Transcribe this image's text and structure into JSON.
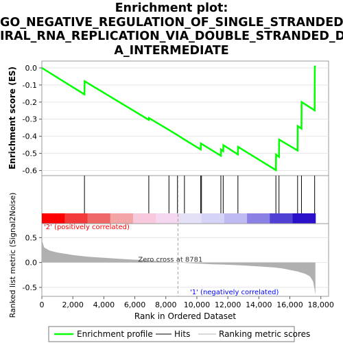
{
  "chart_data": {
    "type": "line",
    "title_lines": [
      "Enrichment plot:",
      "GO_NEGATIVE_REGULATION_OF_SINGLE_STRANDED_V",
      "IRAL_RNA_REPLICATION_VIA_DOUBLE_STRANDED_DN",
      "A_INTERMEDIATE"
    ],
    "xlabel": "Rank in Ordered Dataset",
    "ylabel_top": "Enrichment score (ES)",
    "ylabel_bottom": "Ranked list metric (Signal2Noise)",
    "xlim": [
      0,
      18500
    ],
    "x_ticks": [
      0,
      2000,
      4000,
      6000,
      8000,
      10000,
      12000,
      14000,
      16000,
      18000
    ],
    "x_tick_labels": [
      "0",
      "2,000",
      "4,000",
      "6,000",
      "8,000",
      "10,000",
      "12,000",
      "14,000",
      "16,000",
      "18,000"
    ],
    "es_ylim": [
      -0.63,
      0.04
    ],
    "es_ticks": [
      0.0,
      -0.1,
      -0.2,
      -0.3,
      -0.4,
      -0.5,
      -0.6
    ],
    "es_tick_labels": [
      "0.0",
      "-0.1",
      "-0.2",
      "-0.3",
      "-0.4",
      "-0.5",
      "-0.6"
    ],
    "metric_ylim": [
      -0.68,
      0.78
    ],
    "metric_ticks": [
      0.5,
      0.0,
      -0.5
    ],
    "metric_tick_labels": [
      "0.5",
      "0.0",
      "-0.5"
    ],
    "n_genes": 17650,
    "hits": [
      2750,
      6900,
      8200,
      8750,
      9200,
      10250,
      10300,
      11550,
      11700,
      12650,
      15100,
      15300,
      16500,
      16750,
      17600
    ],
    "es_profile": [
      [
        0,
        0.0
      ],
      [
        2750,
        -0.155
      ],
      [
        2760,
        -0.078
      ],
      [
        6900,
        -0.304
      ],
      [
        6910,
        -0.293
      ],
      [
        8200,
        -0.363
      ],
      [
        8750,
        -0.393
      ],
      [
        9200,
        -0.419
      ],
      [
        10250,
        -0.477
      ],
      [
        10260,
        -0.442
      ],
      [
        11550,
        -0.514
      ],
      [
        11560,
        -0.477
      ],
      [
        11700,
        -0.487
      ],
      [
        11710,
        -0.452
      ],
      [
        12650,
        -0.506
      ],
      [
        12660,
        -0.462
      ],
      [
        15100,
        -0.598
      ],
      [
        15110,
        -0.507
      ],
      [
        15300,
        -0.52
      ],
      [
        15310,
        -0.419
      ],
      [
        16500,
        -0.483
      ],
      [
        16510,
        -0.34
      ],
      [
        16750,
        -0.355
      ],
      [
        16760,
        -0.2
      ],
      [
        17600,
        -0.248
      ],
      [
        17610,
        0.012
      ],
      [
        17650,
        0.005
      ]
    ],
    "metric_curve": [
      [
        0,
        0.45
      ],
      [
        150,
        0.3
      ],
      [
        500,
        0.24
      ],
      [
        1000,
        0.2
      ],
      [
        2000,
        0.15
      ],
      [
        3000,
        0.115
      ],
      [
        4000,
        0.095
      ],
      [
        5000,
        0.075
      ],
      [
        6000,
        0.055
      ],
      [
        7000,
        0.04
      ],
      [
        8000,
        0.015
      ],
      [
        8781,
        0.0
      ],
      [
        10000,
        -0.02
      ],
      [
        11000,
        -0.035
      ],
      [
        12000,
        -0.045
      ],
      [
        13000,
        -0.06
      ],
      [
        14000,
        -0.08
      ],
      [
        15000,
        -0.1
      ],
      [
        15500,
        -0.12
      ],
      [
        16000,
        -0.15
      ],
      [
        16500,
        -0.18
      ],
      [
        17000,
        -0.23
      ],
      [
        17300,
        -0.28
      ],
      [
        17500,
        -0.38
      ],
      [
        17600,
        -0.55
      ],
      [
        17650,
        -0.65
      ]
    ],
    "zero_cross": 8781,
    "zero_cross_label": "Zero cross at 8781",
    "positive_label": "'2' (positively correlated)",
    "negative_label": "'1' (negatively correlated)",
    "legend": [
      "Enrichment profile",
      "Hits",
      "Ranking metric scores"
    ],
    "colors": {
      "profile": "#00ff00",
      "hits": "#000000",
      "metric": "#b0b0b0",
      "positive_label": "#ff0000",
      "negative_label": "#0000ff",
      "heat": [
        "#ff0000",
        "#f33a3a",
        "#ee6868",
        "#f3a4a4",
        "#f8c8dc",
        "#f6d7f0",
        "#e4e1f7",
        "#d6d4f6",
        "#bfbbf2",
        "#8b80e4",
        "#5040d4",
        "#2a10c8"
      ]
    }
  }
}
